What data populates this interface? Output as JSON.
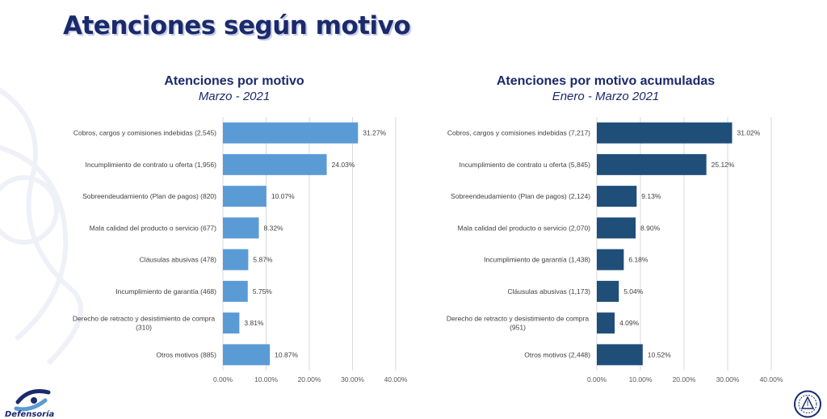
{
  "page": {
    "title": "Atenciones según motivo",
    "footer_logo_text": "Defensoría"
  },
  "colors": {
    "left_bar": "#5b9bd5",
    "right_bar": "#1f4e79",
    "title": "#1a2a6b",
    "grid": "#d9d9d9"
  },
  "chart_data": [
    {
      "type": "bar",
      "orientation": "horizontal",
      "title": "Atenciones por motivo",
      "subtitle": "Marzo - 2021",
      "categories": [
        "Cobros, cargos y comisiones indebidas (2,545)",
        "Incumplimiento de contrato u oferta (1,956)",
        "Sobreendeudamiento (Plan de pagos) (820)",
        "Mala calidad del producto o servicio (677)",
        "Cláusulas abusivas (478)",
        "Incumplimiento de garantía (468)",
        "Derecho de retracto y desistimiento de compra (310)",
        "Otros motivos (885)"
      ],
      "values": [
        31.27,
        24.03,
        10.07,
        8.32,
        5.87,
        5.75,
        3.81,
        10.87
      ],
      "value_labels": [
        "31.27%",
        "24.03%",
        "10.07%",
        "8.32%",
        "5.87%",
        "5.75%",
        "3.81%",
        "10.87%"
      ],
      "xlim": [
        0,
        40
      ],
      "x_ticks": [
        "0.00%",
        "10.00%",
        "20.00%",
        "30.00%",
        "40.00%"
      ],
      "grid": true
    },
    {
      "type": "bar",
      "orientation": "horizontal",
      "title": "Atenciones por motivo acumuladas",
      "subtitle": "Enero - Marzo 2021",
      "categories": [
        "Cobros, cargos y comisiones indebidas (7,217)",
        "Incumplimiento de contrato u oferta (5,845)",
        "Sobreendeudamiento (Plan de pagos) (2,124)",
        "Mala calidad del producto o servicio (2,070)",
        "Incumplimiento de garantía (1,438)",
        "Cláusulas abusivas (1,173)",
        "Derecho de retracto y desistimiento de compra (951)",
        "Otros motivos (2,448)"
      ],
      "values": [
        31.02,
        25.12,
        9.13,
        8.9,
        6.18,
        5.04,
        4.09,
        10.52
      ],
      "value_labels": [
        "31.02%",
        "25.12%",
        "9.13%",
        "8.90%",
        "6.18%",
        "5.04%",
        "4.09%",
        "10.52%"
      ],
      "xlim": [
        0,
        40
      ],
      "x_ticks": [
        "0.00%",
        "10.00%",
        "20.00%",
        "30.00%",
        "40.00%"
      ],
      "grid": true
    }
  ]
}
